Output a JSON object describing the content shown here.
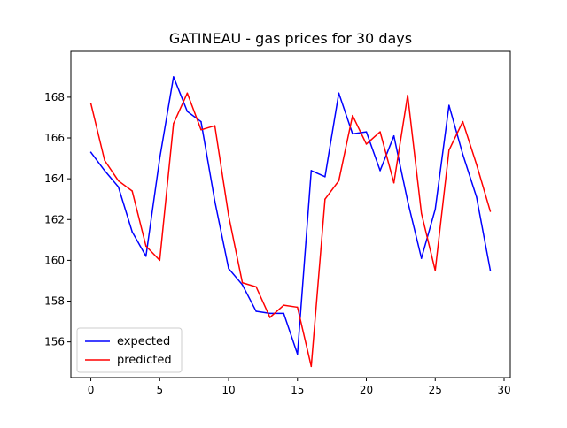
{
  "chart_data": {
    "type": "line",
    "title": "GATINEAU - gas prices for 30 days",
    "xlabel": "",
    "ylabel": "",
    "xlim": [
      -1.45,
      30.45
    ],
    "ylim": [
      154.25,
      170.25
    ],
    "x_ticks": [
      0,
      5,
      10,
      15,
      20,
      25,
      30
    ],
    "y_ticks": [
      156,
      158,
      160,
      162,
      164,
      166,
      168
    ],
    "legend_position": "lower-left",
    "grid": false,
    "x": [
      0,
      1,
      2,
      3,
      4,
      5,
      6,
      7,
      8,
      9,
      10,
      11,
      12,
      13,
      14,
      15,
      16,
      17,
      18,
      19,
      20,
      21,
      22,
      23,
      24,
      25,
      26,
      27,
      28,
      29
    ],
    "series": [
      {
        "name": "expected",
        "color": "#0000ff",
        "values": [
          165.3,
          164.4,
          163.6,
          161.4,
          160.2,
          165.0,
          169.0,
          167.3,
          166.8,
          162.9,
          159.6,
          158.8,
          157.5,
          157.4,
          157.4,
          155.4,
          164.4,
          164.1,
          168.2,
          166.2,
          166.3,
          164.4,
          166.1,
          162.9,
          160.1,
          162.5,
          167.6,
          165.2,
          163.1,
          159.5
        ]
      },
      {
        "name": "predicted",
        "color": "#ff0000",
        "values": [
          167.7,
          164.9,
          163.9,
          163.4,
          160.7,
          160.0,
          166.7,
          168.2,
          166.4,
          166.6,
          162.2,
          158.9,
          158.7,
          157.2,
          157.8,
          157.7,
          154.8,
          163.0,
          163.9,
          167.1,
          165.7,
          166.3,
          163.8,
          168.1,
          162.3,
          159.5,
          165.4,
          166.8,
          164.7,
          162.4
        ]
      }
    ]
  }
}
